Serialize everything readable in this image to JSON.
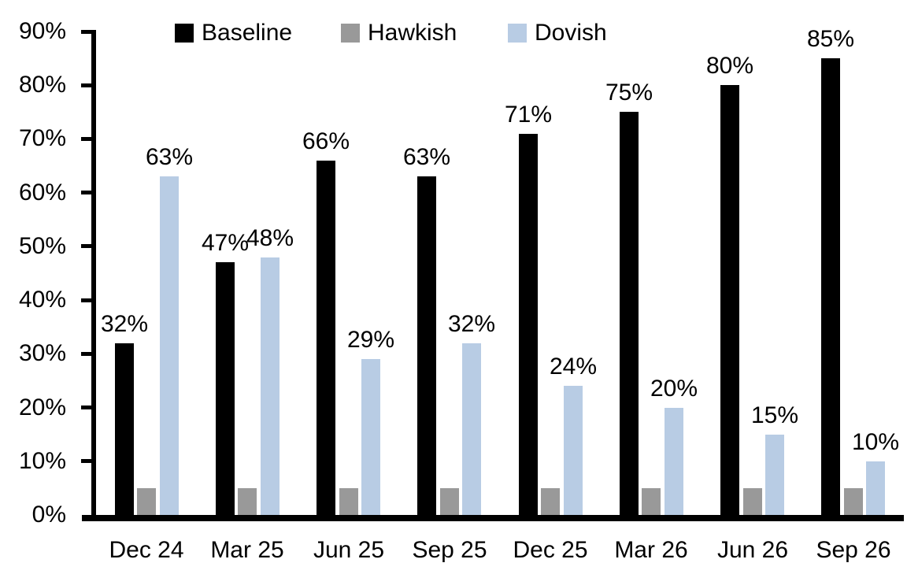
{
  "chart_data": {
    "type": "bar",
    "title": "",
    "xlabel": "",
    "ylabel": "",
    "categories": [
      "Dec 24",
      "Mar 25",
      "Jun 25",
      "Sep 25",
      "Dec 25",
      "Mar 26",
      "Jun 26",
      "Sep 26"
    ],
    "series": [
      {
        "name": "Baseline",
        "color": "#000000",
        "values": [
          32,
          47,
          66,
          63,
          71,
          75,
          80,
          85
        ],
        "labels": [
          "32%",
          "47%",
          "66%",
          "63%",
          "71%",
          "75%",
          "80%",
          "85%"
        ]
      },
      {
        "name": "Hawkish",
        "color": "#999999",
        "values": [
          5,
          5,
          5,
          5,
          5,
          5,
          5,
          5
        ],
        "labels": [
          "",
          "",
          "",
          "",
          "",
          "",
          "",
          ""
        ]
      },
      {
        "name": "Dovish",
        "color": "#B8CCE4",
        "values": [
          63,
          48,
          29,
          32,
          24,
          20,
          15,
          10
        ],
        "labels": [
          "63%",
          "48%",
          "29%",
          "32%",
          "24%",
          "20%",
          "15%",
          "10%"
        ]
      }
    ],
    "y_axis": {
      "min": 0,
      "max": 90,
      "step": 10,
      "tick_labels": [
        "0%",
        "10%",
        "20%",
        "30%",
        "40%",
        "50%",
        "60%",
        "70%",
        "80%",
        "90%"
      ]
    },
    "ylim": [
      0,
      90
    ],
    "grid": false,
    "legend": {
      "position": "top",
      "entries": [
        "Baseline",
        "Hawkish",
        "Dovish"
      ]
    }
  }
}
